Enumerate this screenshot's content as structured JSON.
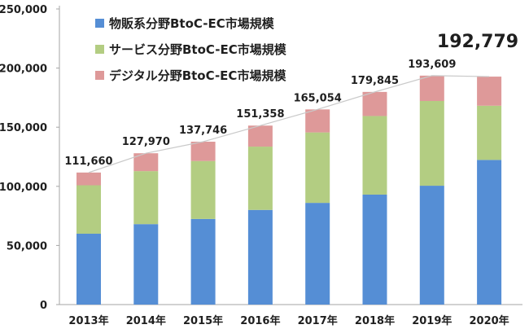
{
  "chart_data": {
    "type": "bar",
    "stacked": true,
    "title": "",
    "xlabel": "",
    "ylabel": "",
    "categories": [
      "2013年",
      "2014年",
      "2015年",
      "2016年",
      "2017年",
      "2018年",
      "2019年",
      "2020年"
    ],
    "series": [
      {
        "name": "物販系分野BtoC-EC市場規模",
        "color": "#558ed5",
        "values": [
          59931,
          68042,
          72398,
          80043,
          86008,
          92992,
          100515,
          122333
        ]
      },
      {
        "name": "サービス分野BtoC-EC市場規模",
        "color": "#b3cd82",
        "values": [
          40960,
          44816,
          49014,
          53532,
          59568,
          66471,
          71672,
          45832
        ]
      },
      {
        "name": "デジタル分野BtoC-EC市場規模",
        "color": "#de9999",
        "values": [
          10769,
          15112,
          16334,
          17782,
          19478,
          20382,
          21422,
          24614
        ]
      }
    ],
    "totals": [
      111660,
      127970,
      137746,
      151358,
      165054,
      179845,
      193609,
      192779
    ],
    "total_labels": [
      "111,660",
      "127,970",
      "137,746",
      "151,358",
      "165,054",
      "179,845",
      "193,609",
      "192,779"
    ],
    "ylim": [
      0,
      250000
    ],
    "yticks": [
      0,
      50000,
      100000,
      150000,
      200000,
      250000
    ],
    "ytick_labels": [
      "0",
      "50,000",
      "100,000",
      "150,000",
      "200,000",
      "250,000"
    ],
    "legend_position": "top-left",
    "grid": false,
    "trend_line": "totals",
    "trend_line_color": "#c9c9c9",
    "axis_color": "#a6a6a6"
  }
}
